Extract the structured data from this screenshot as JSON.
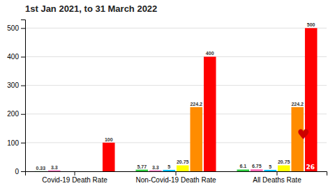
{
  "chart_data": {
    "type": "bar",
    "title": "1st Jan 2021, to 31 March 2022",
    "categories": [
      "Covid-19 Death Rate",
      "Non-Covid-19 Death Rate",
      "All Deaths Rate"
    ],
    "series": [
      {
        "color": "#2ecc40",
        "values": [
          0.33,
          5.77,
          6.1
        ]
      },
      {
        "color": "#ff69b4",
        "values": [
          3.3,
          3.3,
          6.75
        ]
      },
      {
        "color": "#00bfff",
        "values": [
          0,
          5,
          5
        ]
      },
      {
        "color": "#ffff00",
        "values": [
          0,
          20.75,
          20.75
        ]
      },
      {
        "color": "#ff8c00",
        "values": [
          0,
          224.2,
          224.2
        ]
      },
      {
        "color": "#ff0000",
        "values": [
          100,
          400,
          500
        ]
      }
    ],
    "ylim": [
      0,
      530
    ],
    "yticks": [
      0,
      100,
      200,
      300,
      400,
      500
    ],
    "grid": true,
    "data_labels": true,
    "annotations": [
      {
        "text": "♥",
        "x": "All Deaths Rate",
        "series": 4,
        "y": 125,
        "color": "#cc0000"
      },
      {
        "text": "26",
        "x": "All Deaths Rate",
        "series": 4,
        "y": 5,
        "color": "#ffffff"
      }
    ]
  }
}
